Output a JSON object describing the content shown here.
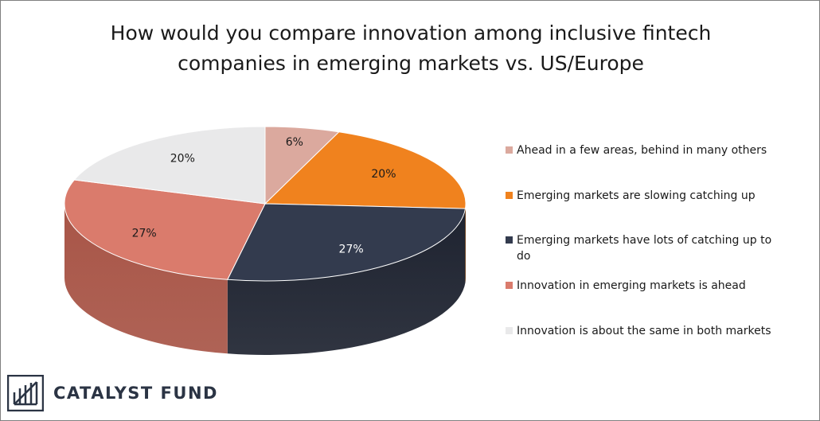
{
  "chart_data": {
    "type": "pie",
    "style": "3d",
    "title": "How would you compare innovation among inclusive fintech\ncompanies in emerging markets vs. US/Europe",
    "legend_position": "right",
    "slices": [
      {
        "label": "Ahead in a few areas, behind in many others",
        "value": 6,
        "display": "6%",
        "color": "#dba99e",
        "side_color": "#b9877c",
        "label_color": "#1a1a1a"
      },
      {
        "label": "Emerging markets are slowing catching up",
        "value": 20,
        "display": "20%",
        "color": "#f0821e",
        "side_color": "#b85f10",
        "label_color": "#1a1a1a"
      },
      {
        "label": "Emerging markets have lots of catching up to do",
        "value": 27,
        "display": "27%",
        "color": "#333b4e",
        "side_color": "#1e2330",
        "label_color": "#ffffff"
      },
      {
        "label": "Innovation in emerging markets is ahead",
        "value": 27,
        "display": "27%",
        "color": "#da7b6c",
        "side_color": "#a85547",
        "label_color": "#1a1a1a"
      },
      {
        "label": "Innovation is about the same in both markets",
        "value": 20,
        "display": "20%",
        "color": "#e9e9ea",
        "side_color": "#c4c4c6",
        "label_color": "#1a1a1a"
      }
    ]
  },
  "brand": {
    "name": "CATALYST FUND",
    "logo_icon": "catalyst-fund-logo-icon",
    "color": "#2b3444"
  }
}
